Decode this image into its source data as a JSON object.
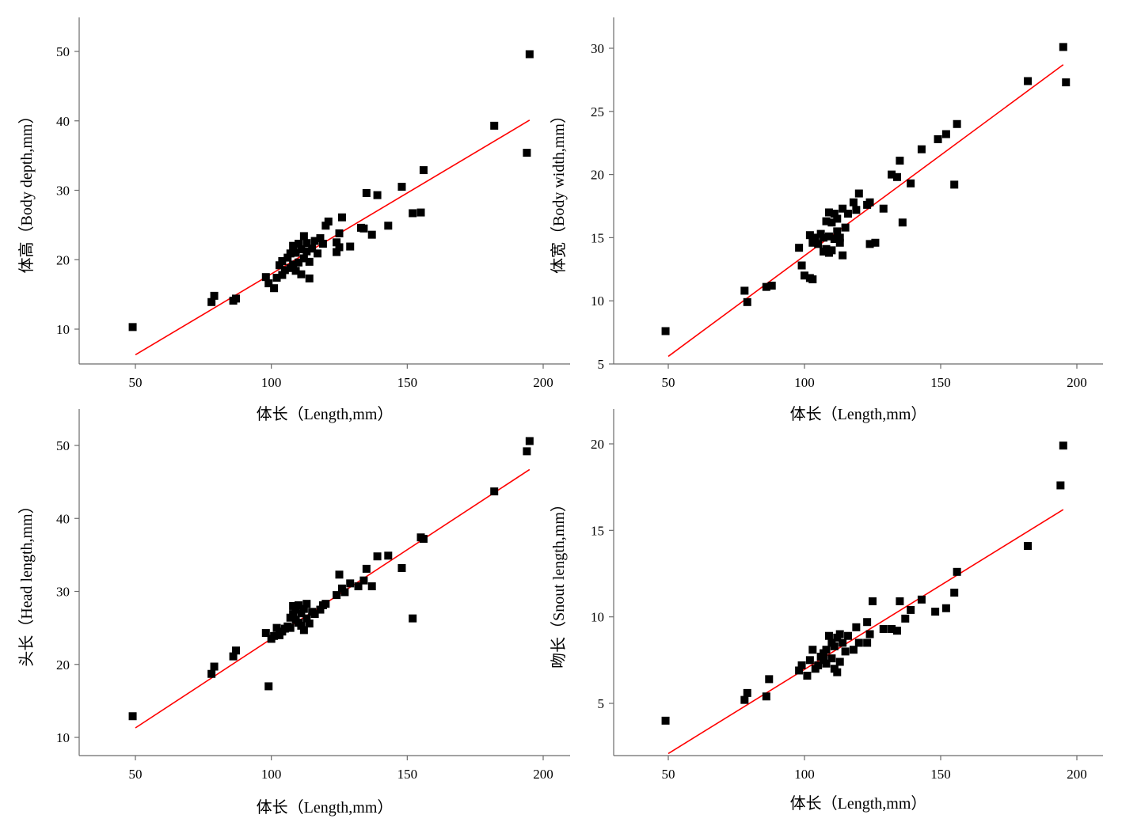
{
  "colors": {
    "points": "#000000",
    "fit_line": "#ff0000",
    "axes": "#6b6b6b"
  },
  "chart_data": [
    {
      "type": "scatter",
      "xlabel": "体长（Length,mm）",
      "ylabel": "体高（Body depth,mm）",
      "xlim": [
        30,
        210
      ],
      "ylim": [
        5,
        55
      ],
      "xticks": [
        50,
        100,
        150,
        200
      ],
      "yticks": [
        10,
        20,
        30,
        40,
        50
      ],
      "fit": {
        "x0": 50,
        "y0": 6.3,
        "x1": 195,
        "y1": 40.1
      },
      "points": [
        [
          49,
          10.3
        ],
        [
          78,
          13.9
        ],
        [
          79,
          14.8
        ],
        [
          86,
          14.1
        ],
        [
          87,
          14.4
        ],
        [
          98,
          17.5
        ],
        [
          99,
          16.6
        ],
        [
          101,
          15.9
        ],
        [
          102,
          17.4
        ],
        [
          103,
          19.2
        ],
        [
          104,
          17.8
        ],
        [
          104,
          19.8
        ],
        [
          105,
          18.5
        ],
        [
          106,
          20.3
        ],
        [
          107,
          18.8
        ],
        [
          107,
          20.9
        ],
        [
          108,
          19.3
        ],
        [
          108,
          22.0
        ],
        [
          109,
          18.4
        ],
        [
          109,
          21.0
        ],
        [
          110,
          22.3
        ],
        [
          110,
          19.6
        ],
        [
          111,
          21.5
        ],
        [
          111,
          17.9
        ],
        [
          112,
          23.4
        ],
        [
          112,
          20.2
        ],
        [
          113,
          21.2
        ],
        [
          113,
          22.4
        ],
        [
          114,
          19.7
        ],
        [
          114,
          17.3
        ],
        [
          115,
          21.6
        ],
        [
          116,
          22.7
        ],
        [
          117,
          20.9
        ],
        [
          118,
          23.1
        ],
        [
          119,
          22.3
        ],
        [
          120,
          24.9
        ],
        [
          121,
          25.5
        ],
        [
          124,
          21.1
        ],
        [
          124,
          22.5
        ],
        [
          125,
          21.8
        ],
        [
          125,
          23.8
        ],
        [
          126,
          26.1
        ],
        [
          129,
          21.9
        ],
        [
          133,
          24.6
        ],
        [
          134,
          24.5
        ],
        [
          135,
          29.6
        ],
        [
          137,
          23.6
        ],
        [
          139,
          29.3
        ],
        [
          143,
          24.9
        ],
        [
          148,
          30.5
        ],
        [
          152,
          26.7
        ],
        [
          155,
          26.8
        ],
        [
          156,
          32.9
        ],
        [
          182,
          39.3
        ],
        [
          194,
          35.4
        ],
        [
          195,
          49.6
        ]
      ]
    },
    {
      "type": "scatter",
      "xlabel": "体长（Length,mm）",
      "ylabel": "体宽（Body width,mm）",
      "xlim": [
        30,
        210
      ],
      "ylim": [
        5,
        31.5
      ],
      "xticks": [
        50,
        100,
        150,
        200
      ],
      "yticks": [
        5,
        10,
        15,
        20,
        25,
        30
      ],
      "fit": {
        "x0": 50,
        "y0": 5.6,
        "x1": 195,
        "y1": 28.7
      },
      "points": [
        [
          49,
          7.6
        ],
        [
          78,
          10.8
        ],
        [
          79,
          9.9
        ],
        [
          86,
          11.1
        ],
        [
          88,
          11.2
        ],
        [
          98,
          14.2
        ],
        [
          99,
          12.8
        ],
        [
          100,
          12.0
        ],
        [
          102,
          11.8
        ],
        [
          103,
          11.7
        ],
        [
          102,
          15.2
        ],
        [
          103,
          14.6
        ],
        [
          104,
          15.0
        ],
        [
          105,
          14.5
        ],
        [
          106,
          15.3
        ],
        [
          107,
          13.9
        ],
        [
          107,
          15.0
        ],
        [
          108,
          14.1
        ],
        [
          108,
          16.3
        ],
        [
          109,
          13.8
        ],
        [
          109,
          15.1
        ],
        [
          109,
          17.0
        ],
        [
          110,
          14.0
        ],
        [
          110,
          16.2
        ],
        [
          111,
          14.9
        ],
        [
          111,
          16.9
        ],
        [
          112,
          15.5
        ],
        [
          112,
          16.5
        ],
        [
          113,
          15.0
        ],
        [
          113,
          14.6
        ],
        [
          114,
          13.6
        ],
        [
          114,
          17.3
        ],
        [
          115,
          15.8
        ],
        [
          116,
          16.9
        ],
        [
          118,
          17.8
        ],
        [
          119,
          17.2
        ],
        [
          120,
          18.5
        ],
        [
          123,
          17.6
        ],
        [
          124,
          14.5
        ],
        [
          124,
          17.8
        ],
        [
          126,
          14.6
        ],
        [
          129,
          17.3
        ],
        [
          132,
          20.0
        ],
        [
          134,
          19.8
        ],
        [
          135,
          21.1
        ],
        [
          136,
          16.2
        ],
        [
          139,
          19.3
        ],
        [
          143,
          22.0
        ],
        [
          149,
          22.8
        ],
        [
          152,
          23.2
        ],
        [
          155,
          19.2
        ],
        [
          156,
          24.0
        ],
        [
          182,
          27.4
        ],
        [
          195,
          30.1
        ],
        [
          196,
          27.3
        ]
      ]
    },
    {
      "type": "scatter",
      "xlabel": "体长（Length,mm）",
      "ylabel": "头长（Head length,mm）",
      "xlim": [
        30,
        210
      ],
      "ylim": [
        7.5,
        55.5
      ],
      "xticks": [
        50,
        100,
        150,
        200
      ],
      "yticks": [
        10,
        20,
        30,
        40,
        50
      ],
      "fit": {
        "x0": 50,
        "y0": 11.3,
        "x1": 195,
        "y1": 46.7
      },
      "points": [
        [
          49,
          12.9
        ],
        [
          78,
          18.7
        ],
        [
          79,
          19.7
        ],
        [
          86,
          21.1
        ],
        [
          87,
          21.9
        ],
        [
          98,
          24.3
        ],
        [
          99,
          17.0
        ],
        [
          100,
          23.5
        ],
        [
          101,
          23.9
        ],
        [
          102,
          25.0
        ],
        [
          103,
          24.0
        ],
        [
          104,
          24.5
        ],
        [
          105,
          24.9
        ],
        [
          106,
          25.2
        ],
        [
          107,
          25.0
        ],
        [
          107,
          26.4
        ],
        [
          108,
          26.9
        ],
        [
          108,
          28.0
        ],
        [
          109,
          26.1
        ],
        [
          109,
          27.5
        ],
        [
          110,
          28.1
        ],
        [
          110,
          25.7
        ],
        [
          111,
          27.0
        ],
        [
          111,
          25.3
        ],
        [
          112,
          27.6
        ],
        [
          112,
          24.7
        ],
        [
          113,
          26.3
        ],
        [
          113,
          28.3
        ],
        [
          114,
          25.6
        ],
        [
          115,
          27.2
        ],
        [
          116,
          26.9
        ],
        [
          118,
          27.5
        ],
        [
          119,
          28.1
        ],
        [
          120,
          28.3
        ],
        [
          124,
          29.5
        ],
        [
          125,
          32.3
        ],
        [
          126,
          30.4
        ],
        [
          127,
          29.9
        ],
        [
          129,
          31.1
        ],
        [
          132,
          30.7
        ],
        [
          134,
          31.5
        ],
        [
          135,
          33.1
        ],
        [
          137,
          30.7
        ],
        [
          139,
          34.8
        ],
        [
          143,
          34.9
        ],
        [
          148,
          33.2
        ],
        [
          152,
          26.3
        ],
        [
          155,
          37.4
        ],
        [
          156,
          37.2
        ],
        [
          182,
          43.7
        ],
        [
          194,
          49.2
        ],
        [
          195,
          50.6
        ]
      ]
    },
    {
      "type": "scatter",
      "xlabel": "体长（Length,mm）",
      "ylabel": "吻长（Snout length,mm）",
      "xlim": [
        30,
        210
      ],
      "ylim": [
        1.8,
        21.8
      ],
      "xticks": [
        50,
        100,
        150,
        200
      ],
      "yticks": [
        5,
        10,
        15,
        20
      ],
      "fit": {
        "x0": 50,
        "y0": 2.1,
        "x1": 195,
        "y1": 16.2
      },
      "points": [
        [
          49,
          4.0
        ],
        [
          78,
          5.2
        ],
        [
          79,
          5.6
        ],
        [
          86,
          5.4
        ],
        [
          87,
          6.4
        ],
        [
          98,
          6.9
        ],
        [
          99,
          7.2
        ],
        [
          101,
          6.6
        ],
        [
          102,
          7.5
        ],
        [
          103,
          8.1
        ],
        [
          104,
          7.0
        ],
        [
          105,
          7.2
        ],
        [
          106,
          7.7
        ],
        [
          107,
          7.5
        ],
        [
          107,
          7.9
        ],
        [
          108,
          8.1
        ],
        [
          108,
          7.3
        ],
        [
          109,
          8.9
        ],
        [
          110,
          7.6
        ],
        [
          110,
          8.5
        ],
        [
          111,
          7.0
        ],
        [
          111,
          8.3
        ],
        [
          112,
          6.8
        ],
        [
          112,
          8.8
        ],
        [
          113,
          7.4
        ],
        [
          113,
          9.0
        ],
        [
          114,
          8.5
        ],
        [
          115,
          8.0
        ],
        [
          116,
          8.9
        ],
        [
          118,
          8.1
        ],
        [
          119,
          9.4
        ],
        [
          120,
          8.5
        ],
        [
          123,
          8.5
        ],
        [
          123,
          9.7
        ],
        [
          124,
          9.0
        ],
        [
          125,
          10.9
        ],
        [
          129,
          9.3
        ],
        [
          132,
          9.3
        ],
        [
          134,
          9.2
        ],
        [
          135,
          10.9
        ],
        [
          137,
          9.9
        ],
        [
          139,
          10.4
        ],
        [
          143,
          11.0
        ],
        [
          148,
          10.3
        ],
        [
          152,
          10.5
        ],
        [
          155,
          11.4
        ],
        [
          156,
          12.6
        ],
        [
          182,
          14.1
        ],
        [
          194,
          17.6
        ],
        [
          195,
          19.9
        ]
      ]
    }
  ]
}
